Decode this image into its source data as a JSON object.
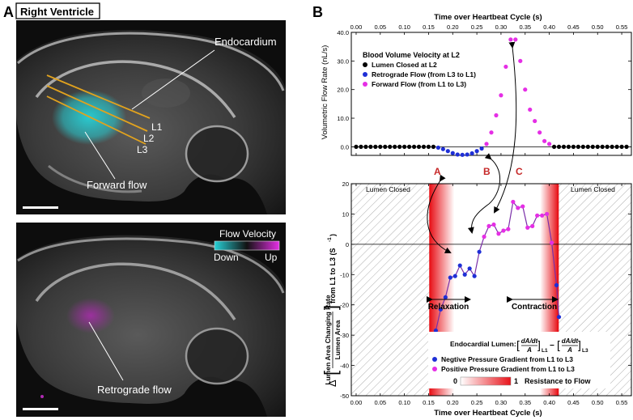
{
  "panel_a": {
    "letter": "A",
    "title": "Right Ventricle",
    "top_labels": {
      "endocardium": "Endocardium",
      "l1": "L1",
      "l2": "L2",
      "l3": "L3",
      "forward_flow": "Forward flow"
    },
    "bottom_labels": {
      "retrograde_flow": "Retrograde flow"
    },
    "legend": {
      "title": "Flow Velocity",
      "down": "Down",
      "up": "Up"
    }
  },
  "panel_b": {
    "letter": "B",
    "markers": {
      "a": "A",
      "b": "B",
      "c": "C"
    },
    "top_axis_title": "Time over Heartbeat Cycle (s)",
    "bottom_axis_title": "Time over Heartbeat Cycle (s)",
    "x_ticks": [
      "0.00",
      "0.05",
      "0.10",
      "0.15",
      "0.20",
      "0.25",
      "0.30",
      "0.35",
      "0.40",
      "0.45",
      "0.50",
      "0.55"
    ],
    "top_chart": {
      "ylabel": "Volumetric Flow Rate (nL/s)",
      "y_ticks": [
        "0.0",
        "10.0",
        "20.0",
        "30.0",
        "40.0"
      ],
      "legend_title": "Blood Volume Velocity at L2",
      "legend": [
        "Lumen Closed at L2",
        "Retrograde Flow (from L3 to L1)",
        "Forward Flow (from L1 to L3)"
      ]
    },
    "bottom_chart": {
      "ylabel_delta": "Δ",
      "ylabel_top": "Lumen Area Changing Rate",
      "ylabel_bottom": "Lumen Area",
      "ylabel_tail": "from L1 to L3 (S",
      "ylabel_sup": "-1",
      "ylabel_close": ")",
      "y_ticks": [
        "20",
        "10",
        "0",
        "-10",
        "-20",
        "-30",
        "-40",
        "-50"
      ],
      "lumen_closed_left": "Lumen Closed",
      "lumen_closed_right": "Lumen Closed",
      "relaxation": "Relaxation",
      "contraction": "Contraction",
      "formula_label": "Endocardial Lumen:",
      "formula_num": "dA/dt",
      "formula_den": "A",
      "formula_sub1": "L1",
      "formula_sub2": "L3",
      "legend": [
        "Negtive Pressure Gradient from L1 to L3",
        "Positive Pressure Gradient from L1 to L3"
      ],
      "colorbar_min": "0",
      "colorbar_max": "1",
      "colorbar_label": "Resistance to Flow"
    }
  },
  "colors": {
    "black_dot": "#000000",
    "blue_dot": "#1f2fd6",
    "magenta_dot": "#e52ee5",
    "resistance": "#e8141b",
    "cyan": "#27d0d6",
    "orange": "#e1a21e"
  },
  "chart_data": [
    {
      "type": "scatter",
      "title": "Blood Volume Velocity at L2",
      "xlabel": "Time over Heartbeat Cycle (s)",
      "ylabel": "Volumetric Flow Rate (nL/s)",
      "xlim": [
        -0.01,
        0.57
      ],
      "ylim": [
        -3,
        40
      ],
      "series": [
        {
          "name": "Lumen Closed at L2",
          "x": [
            0.0,
            0.01,
            0.02,
            0.03,
            0.04,
            0.05,
            0.06,
            0.07,
            0.08,
            0.09,
            0.1,
            0.11,
            0.12,
            0.13,
            0.14,
            0.15,
            0.16,
            0.41,
            0.42,
            0.43,
            0.44,
            0.45,
            0.46,
            0.47,
            0.48,
            0.49,
            0.5,
            0.51,
            0.52,
            0.53,
            0.54,
            0.55,
            0.56
          ],
          "y": [
            0,
            0,
            0,
            0,
            0,
            0,
            0,
            0,
            0,
            0,
            0,
            0,
            0,
            0,
            0,
            0,
            0,
            0,
            0,
            0,
            0,
            0,
            0,
            0,
            0,
            0,
            0,
            0,
            0,
            0,
            0,
            0,
            0
          ]
        },
        {
          "name": "Retrograde Flow (from L3 to L1)",
          "x": [
            0.17,
            0.18,
            0.19,
            0.2,
            0.21,
            0.22,
            0.23,
            0.24,
            0.25,
            0.26
          ],
          "y": [
            -0.3,
            -0.8,
            -1.5,
            -2.2,
            -2.7,
            -2.8,
            -2.7,
            -2.3,
            -1.5,
            -0.6
          ]
        },
        {
          "name": "Forward Flow (from L1 to L3)",
          "x": [
            0.27,
            0.28,
            0.29,
            0.3,
            0.31,
            0.32,
            0.33,
            0.34,
            0.35,
            0.36,
            0.37,
            0.38,
            0.39,
            0.4
          ],
          "y": [
            1.0,
            5.0,
            11.0,
            18.0,
            28.0,
            37.5,
            37.5,
            30.0,
            20.0,
            13.0,
            9.0,
            5.0,
            2.0,
            1.0
          ]
        }
      ]
    },
    {
      "type": "line",
      "xlabel": "Time over Heartbeat Cycle (s)",
      "ylabel": "Δ[Lumen Area Changing Rate / Lumen Area] from L1 to L3 (S-1)",
      "xlim": [
        -0.01,
        0.57
      ],
      "ylim": [
        -50,
        20
      ],
      "lumen_closed_regions": [
        [
          -0.01,
          0.153
        ],
        [
          0.418,
          0.57
        ]
      ],
      "series": [
        {
          "name": "Negtive Pressure Gradient from L1 to L3",
          "x": [
            0.155,
            0.165,
            0.175,
            0.185,
            0.195,
            0.205,
            0.215,
            0.225,
            0.235,
            0.245,
            0.255,
            0.415,
            0.42
          ],
          "y": [
            -43.5,
            -28.5,
            -21.5,
            -17.5,
            -11.0,
            -10.5,
            -7.0,
            -10.0,
            -8.0,
            -10.5,
            -2.5,
            -13.5,
            -24.0
          ]
        },
        {
          "name": "Positive Pressure Gradient from L1 to L3",
          "x": [
            0.265,
            0.275,
            0.285,
            0.295,
            0.305,
            0.315,
            0.325,
            0.335,
            0.345,
            0.355,
            0.365,
            0.375,
            0.385,
            0.395,
            0.405
          ],
          "y": [
            2.5,
            6.0,
            6.5,
            3.5,
            4.5,
            5.0,
            14.0,
            12.0,
            12.5,
            5.5,
            6.0,
            9.5,
            9.5,
            10.0,
            0.5
          ]
        }
      ]
    }
  ]
}
